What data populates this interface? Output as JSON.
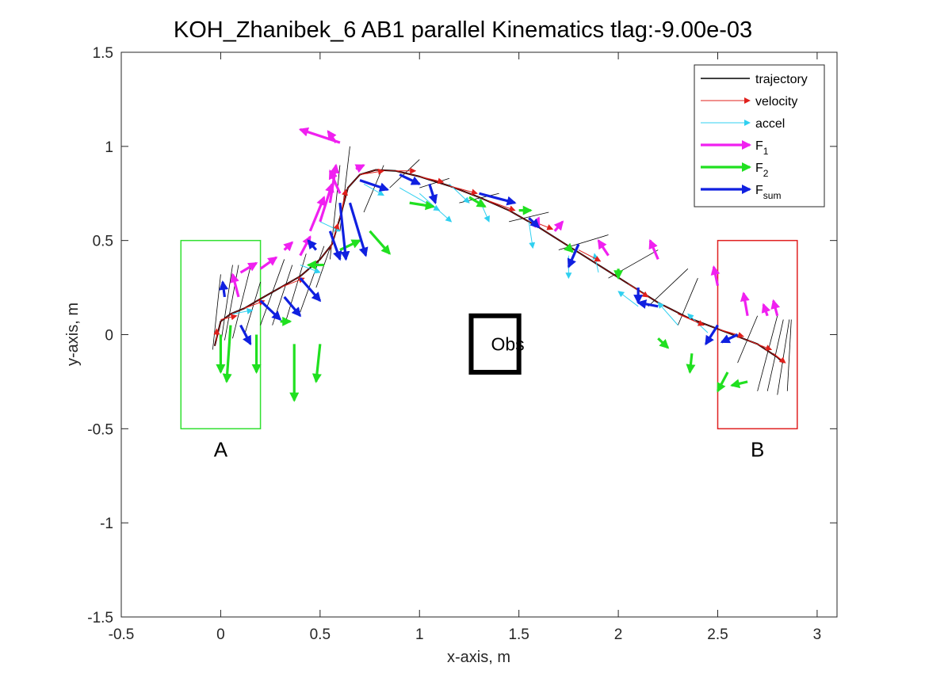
{
  "chart_data": {
    "type": "line",
    "title": "KOH_Zhanibek_6    AB1    parallel    Kinematics tlag:-9.00e-03",
    "xlabel": "x-axis, m",
    "ylabel": "y-axis, m",
    "xlim": [
      -0.5,
      3.1
    ],
    "ylim": [
      -1.5,
      1.5
    ],
    "xticks": [
      -0.5,
      0,
      0.5,
      1,
      1.5,
      2,
      2.5,
      3
    ],
    "yticks": [
      -1.5,
      -1,
      -0.5,
      0,
      0.5,
      1,
      1.5
    ],
    "xtick_labels": [
      "-0.5",
      "0",
      "0.5",
      "1",
      "1.5",
      "2",
      "2.5",
      "3"
    ],
    "ytick_labels": [
      "-1.5",
      "-1",
      "-0.5",
      "0",
      "0.5",
      "1",
      "1.5"
    ],
    "grid": false,
    "legend_position": "top-right",
    "legend": [
      {
        "label": "trajectory",
        "sub": "",
        "color": "#000000",
        "style": "line"
      },
      {
        "label": "velocity",
        "sub": "",
        "color": "#e0201c",
        "style": "thin-arrow"
      },
      {
        "label": "accel",
        "sub": "",
        "color": "#30d0f0",
        "style": "thin-arrow"
      },
      {
        "label": "F",
        "sub": "1",
        "color": "#f020f0",
        "style": "thick-arrow"
      },
      {
        "label": "F",
        "sub": "2",
        "color": "#20e020",
        "style": "thick-arrow"
      },
      {
        "label": "F",
        "sub": "sum",
        "color": "#1020e0",
        "style": "thick-arrow"
      }
    ],
    "regions": [
      {
        "label": "A",
        "x": [
          -0.2,
          0.2
        ],
        "y": [
          -0.5,
          0.5
        ],
        "color": "#30e030"
      },
      {
        "label": "B",
        "x": [
          2.5,
          2.9
        ],
        "y": [
          -0.5,
          0.5
        ],
        "color": "#e02020"
      }
    ],
    "obstacle": {
      "label": "Obs",
      "x": [
        1.26,
        1.5
      ],
      "y": [
        -0.2,
        0.1
      ],
      "color": "#000000"
    },
    "trajectory": {
      "x": [
        -0.03,
        0.0,
        0.05,
        0.12,
        0.2,
        0.3,
        0.4,
        0.5,
        0.56,
        0.6,
        0.64,
        0.7,
        0.78,
        0.88,
        1.0,
        1.15,
        1.3,
        1.45,
        1.6,
        1.75,
        1.9,
        2.05,
        2.2,
        2.35,
        2.5,
        2.6,
        2.7,
        2.8,
        2.83
      ],
      "y": [
        -0.06,
        0.07,
        0.11,
        0.14,
        0.19,
        0.25,
        0.31,
        0.4,
        0.48,
        0.62,
        0.78,
        0.85,
        0.875,
        0.87,
        0.84,
        0.79,
        0.73,
        0.66,
        0.57,
        0.47,
        0.37,
        0.27,
        0.17,
        0.09,
        0.03,
        -0.01,
        -0.05,
        -0.12,
        -0.15
      ]
    },
    "vectors": {
      "velocity": [
        [
          -0.02,
          -0.03,
          0.0,
          0.06
        ],
        [
          0.0,
          0.08,
          0.08,
          0.02
        ],
        [
          0.12,
          0.14,
          0.1,
          0.04
        ],
        [
          0.3,
          0.25,
          0.12,
          0.05
        ],
        [
          0.55,
          0.45,
          0.04,
          0.14
        ],
        [
          0.6,
          0.62,
          0.03,
          0.15
        ],
        [
          0.7,
          0.85,
          0.12,
          0.02
        ],
        [
          0.88,
          0.87,
          0.1,
          0.0
        ],
        [
          1.0,
          0.84,
          0.12,
          -0.03
        ],
        [
          1.15,
          0.79,
          0.14,
          -0.04
        ],
        [
          1.35,
          0.71,
          0.13,
          -0.05
        ],
        [
          1.55,
          0.61,
          0.12,
          -0.05
        ],
        [
          1.8,
          0.45,
          0.11,
          -0.06
        ],
        [
          2.05,
          0.27,
          0.1,
          -0.07
        ],
        [
          2.3,
          0.11,
          0.13,
          -0.06
        ],
        [
          2.5,
          0.03,
          0.13,
          -0.04
        ],
        [
          2.65,
          -0.03,
          0.12,
          -0.05
        ],
        [
          2.78,
          -0.1,
          0.06,
          -0.05
        ]
      ],
      "accel": [
        [
          0.06,
          0.11,
          0.1,
          0.02
        ],
        [
          0.4,
          0.37,
          0.1,
          -0.04
        ],
        [
          0.5,
          0.6,
          0.1,
          -0.05
        ],
        [
          0.72,
          0.8,
          0.1,
          -0.06
        ],
        [
          0.9,
          0.78,
          0.2,
          -0.12
        ],
        [
          1.0,
          0.75,
          0.16,
          -0.15
        ],
        [
          1.15,
          0.8,
          0.1,
          -0.1
        ],
        [
          1.3,
          0.72,
          0.05,
          -0.12
        ],
        [
          1.55,
          0.6,
          0.02,
          -0.14
        ],
        [
          1.75,
          0.42,
          0.0,
          -0.12
        ],
        [
          1.9,
          0.33,
          -0.02,
          0.1
        ],
        [
          2.1,
          0.15,
          -0.1,
          0.08
        ],
        [
          2.3,
          0.05,
          -0.1,
          0.12
        ],
        [
          2.45,
          0.01,
          -0.1,
          0.1
        ]
      ],
      "F1": [
        [
          0.09,
          0.2,
          -0.03,
          0.12
        ],
        [
          0.1,
          0.33,
          0.08,
          0.05
        ],
        [
          0.2,
          0.35,
          0.08,
          0.06
        ],
        [
          0.32,
          0.45,
          0.04,
          0.04
        ],
        [
          0.4,
          0.42,
          0.05,
          0.1
        ],
        [
          0.45,
          0.55,
          0.07,
          0.18
        ],
        [
          0.5,
          0.6,
          0.06,
          0.2
        ],
        [
          0.55,
          0.7,
          0.03,
          0.2
        ],
        [
          0.6,
          0.75,
          -0.05,
          0.12
        ],
        [
          0.6,
          1.02,
          -0.2,
          0.07
        ],
        [
          0.58,
          1.02,
          -0.04,
          0.06
        ],
        [
          0.68,
          0.88,
          0.04,
          0.02
        ],
        [
          1.58,
          0.57,
          0.02,
          0.05
        ],
        [
          1.68,
          0.55,
          0.04,
          0.05
        ],
        [
          1.95,
          0.42,
          -0.05,
          0.08
        ],
        [
          2.2,
          0.4,
          -0.04,
          0.1
        ],
        [
          2.5,
          0.26,
          -0.02,
          0.1
        ],
        [
          2.65,
          0.1,
          -0.02,
          0.12
        ],
        [
          2.75,
          0.1,
          -0.02,
          0.06
        ],
        [
          2.8,
          0.1,
          -0.02,
          0.08
        ]
      ],
      "F2": [
        [
          0.0,
          0.0,
          0.0,
          -0.2
        ],
        [
          0.05,
          0.05,
          -0.02,
          -0.3
        ],
        [
          0.18,
          0.0,
          0.0,
          -0.2
        ],
        [
          0.3,
          0.07,
          0.05,
          0.0
        ],
        [
          0.37,
          -0.05,
          0.0,
          -0.3
        ],
        [
          0.5,
          -0.05,
          -0.02,
          -0.2
        ],
        [
          0.52,
          0.37,
          -0.08,
          0.0
        ],
        [
          0.6,
          0.45,
          0.1,
          0.05
        ],
        [
          0.75,
          0.55,
          0.1,
          -0.12
        ],
        [
          0.95,
          0.7,
          0.12,
          -0.02
        ],
        [
          1.25,
          0.73,
          0.08,
          -0.05
        ],
        [
          1.5,
          0.66,
          0.06,
          0.0
        ],
        [
          1.75,
          0.46,
          0.02,
          -0.02
        ],
        [
          2.0,
          0.35,
          0.0,
          -0.05
        ],
        [
          2.2,
          -0.02,
          0.05,
          -0.05
        ],
        [
          2.37,
          -0.1,
          -0.01,
          -0.1
        ],
        [
          2.55,
          -0.2,
          -0.05,
          -0.1
        ],
        [
          2.65,
          -0.25,
          -0.08,
          -0.02
        ]
      ],
      "F_sum": [
        [
          0.02,
          0.2,
          -0.01,
          0.08
        ],
        [
          0.1,
          0.05,
          0.05,
          -0.1
        ],
        [
          0.2,
          0.18,
          0.1,
          -0.1
        ],
        [
          0.32,
          0.2,
          0.08,
          -0.1
        ],
        [
          0.4,
          0.3,
          0.1,
          -0.12
        ],
        [
          0.48,
          0.45,
          -0.04,
          0.05
        ],
        [
          0.55,
          0.55,
          0.05,
          -0.15
        ],
        [
          0.6,
          0.7,
          0.03,
          -0.3
        ],
        [
          0.65,
          0.7,
          0.08,
          -0.28
        ],
        [
          0.7,
          0.82,
          0.14,
          -0.05
        ],
        [
          0.9,
          0.85,
          0.1,
          -0.05
        ],
        [
          1.05,
          0.8,
          0.03,
          -0.1
        ],
        [
          1.3,
          0.75,
          0.18,
          -0.05
        ],
        [
          1.55,
          0.62,
          0.05,
          -0.05
        ],
        [
          1.8,
          0.48,
          -0.05,
          -0.12
        ],
        [
          2.1,
          0.25,
          0.0,
          -0.08
        ],
        [
          2.2,
          0.15,
          -0.1,
          0.02
        ],
        [
          2.5,
          0.05,
          -0.06,
          -0.1
        ],
        [
          2.6,
          0.0,
          -0.08,
          -0.04
        ]
      ],
      "black_lines": [
        [
          -0.04,
          -0.08,
          0.04,
          0.4
        ],
        [
          0.0,
          -0.05,
          0.06,
          0.42
        ],
        [
          0.02,
          -0.03,
          0.07,
          0.4
        ],
        [
          0.06,
          -0.02,
          0.09,
          0.38
        ],
        [
          0.12,
          0.0,
          0.08,
          0.28
        ],
        [
          0.2,
          0.05,
          0.12,
          0.35
        ],
        [
          0.26,
          0.05,
          0.1,
          0.32
        ],
        [
          0.33,
          0.08,
          0.1,
          0.35
        ],
        [
          0.4,
          0.12,
          0.12,
          0.35
        ],
        [
          0.48,
          0.25,
          0.1,
          0.3
        ],
        [
          0.55,
          0.4,
          0.05,
          0.5
        ],
        [
          0.6,
          0.55,
          0.05,
          0.45
        ],
        [
          0.72,
          0.65,
          0.1,
          0.25
        ],
        [
          0.85,
          0.78,
          0.15,
          0.15
        ],
        [
          1.0,
          0.78,
          0.15,
          0.05
        ],
        [
          1.2,
          0.7,
          0.2,
          0.05
        ],
        [
          1.45,
          0.6,
          0.2,
          0.05
        ],
        [
          1.7,
          0.45,
          0.25,
          0.08
        ],
        [
          1.95,
          0.3,
          0.25,
          0.15
        ],
        [
          2.15,
          0.15,
          0.2,
          0.2
        ],
        [
          2.3,
          0.05,
          0.1,
          0.25
        ],
        [
          2.6,
          -0.15,
          0.1,
          0.25
        ],
        [
          2.7,
          -0.3,
          0.1,
          0.4
        ],
        [
          2.75,
          -0.3,
          0.08,
          0.38
        ],
        [
          2.8,
          -0.32,
          0.06,
          0.4
        ],
        [
          2.85,
          -0.3,
          0.02,
          0.38
        ]
      ]
    }
  }
}
